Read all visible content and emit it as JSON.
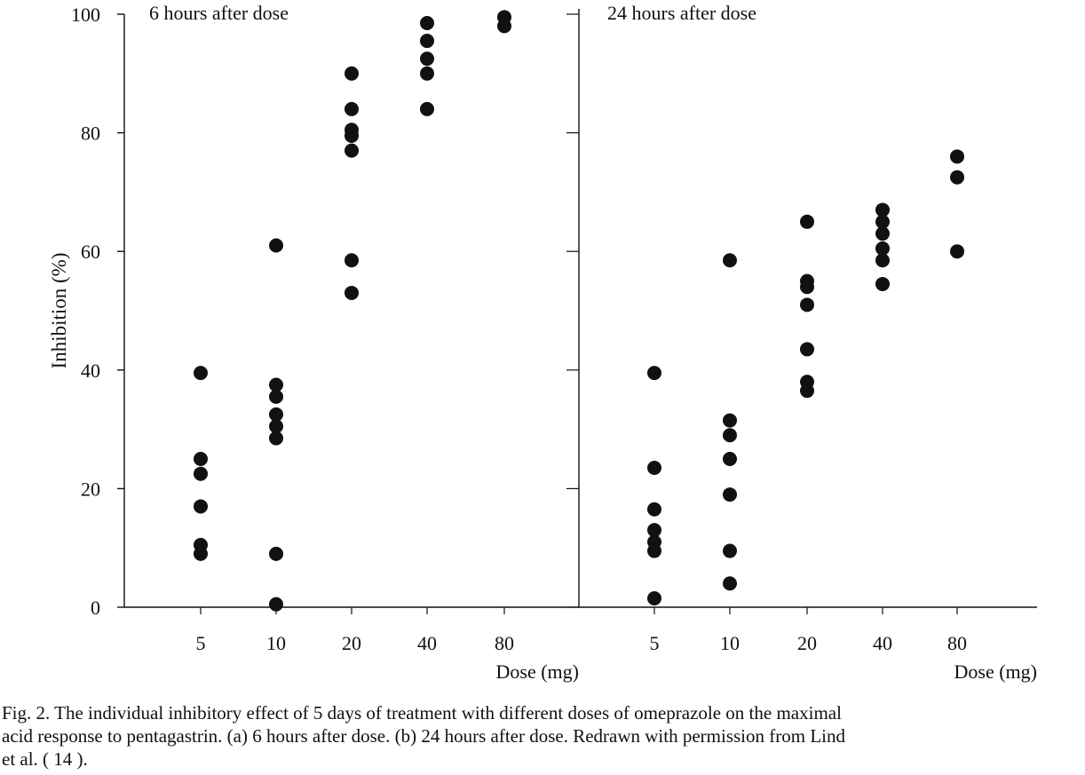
{
  "chart_data": [
    {
      "type": "scatter",
      "title": "6 hours after dose",
      "xlabel": "Dose (mg)",
      "ylabel": "Inhibition (%)",
      "categories": [
        "5",
        "10",
        "20",
        "40",
        "80"
      ],
      "ylim": [
        0,
        100
      ],
      "yticks": [
        "0",
        "20",
        "40",
        "60",
        "80",
        "100"
      ],
      "grid": false,
      "points": [
        {
          "x": "5",
          "y": 39.5
        },
        {
          "x": "5",
          "y": 25
        },
        {
          "x": "5",
          "y": 22.5
        },
        {
          "x": "5",
          "y": 17
        },
        {
          "x": "5",
          "y": 10.5
        },
        {
          "x": "5",
          "y": 9
        },
        {
          "x": "10",
          "y": 61
        },
        {
          "x": "10",
          "y": 37.5
        },
        {
          "x": "10",
          "y": 35.5
        },
        {
          "x": "10",
          "y": 32.5
        },
        {
          "x": "10",
          "y": 30.5
        },
        {
          "x": "10",
          "y": 28.5
        },
        {
          "x": "10",
          "y": 9
        },
        {
          "x": "10",
          "y": 0.5
        },
        {
          "x": "20",
          "y": 90
        },
        {
          "x": "20",
          "y": 84
        },
        {
          "x": "20",
          "y": 80.5
        },
        {
          "x": "20",
          "y": 79.5
        },
        {
          "x": "20",
          "y": 77
        },
        {
          "x": "20",
          "y": 58.5
        },
        {
          "x": "20",
          "y": 53
        },
        {
          "x": "40",
          "y": 98.5
        },
        {
          "x": "40",
          "y": 95.5
        },
        {
          "x": "40",
          "y": 92.5
        },
        {
          "x": "40",
          "y": 90
        },
        {
          "x": "40",
          "y": 84
        },
        {
          "x": "80",
          "y": 99.5
        },
        {
          "x": "80",
          "y": 98
        }
      ]
    },
    {
      "type": "scatter",
      "title": "24 hours after dose",
      "xlabel": "Dose (mg)",
      "ylabel": "",
      "categories": [
        "5",
        "10",
        "20",
        "40",
        "80"
      ],
      "ylim": [
        0,
        100
      ],
      "grid": false,
      "points": [
        {
          "x": "5",
          "y": 39.5
        },
        {
          "x": "5",
          "y": 23.5
        },
        {
          "x": "5",
          "y": 16.5
        },
        {
          "x": "5",
          "y": 13
        },
        {
          "x": "5",
          "y": 11
        },
        {
          "x": "5",
          "y": 9.5
        },
        {
          "x": "5",
          "y": 1.5
        },
        {
          "x": "10",
          "y": 58.5
        },
        {
          "x": "10",
          "y": 31.5
        },
        {
          "x": "10",
          "y": 29
        },
        {
          "x": "10",
          "y": 25
        },
        {
          "x": "10",
          "y": 19
        },
        {
          "x": "10",
          "y": 9.5
        },
        {
          "x": "10",
          "y": 4
        },
        {
          "x": "20",
          "y": 65
        },
        {
          "x": "20",
          "y": 55
        },
        {
          "x": "20",
          "y": 54
        },
        {
          "x": "20",
          "y": 51
        },
        {
          "x": "20",
          "y": 43.5
        },
        {
          "x": "20",
          "y": 38
        },
        {
          "x": "20",
          "y": 36.5
        },
        {
          "x": "40",
          "y": 67
        },
        {
          "x": "40",
          "y": 65
        },
        {
          "x": "40",
          "y": 63
        },
        {
          "x": "40",
          "y": 60.5
        },
        {
          "x": "40",
          "y": 58.5
        },
        {
          "x": "40",
          "y": 54.5
        },
        {
          "x": "80",
          "y": 76
        },
        {
          "x": "80",
          "y": 72.5
        },
        {
          "x": "80",
          "y": 60
        }
      ]
    }
  ],
  "caption": {
    "line1": "Fig. 2. The individual inhibitory effect of 5 days of treatment with different doses of omeprazole on the maximal",
    "line2": "acid response to pentagastrin. (a) 6 hours after dose. (b) 24 hours after dose. Redrawn with permission from Lind",
    "line3": "et al. ( 14 )."
  }
}
